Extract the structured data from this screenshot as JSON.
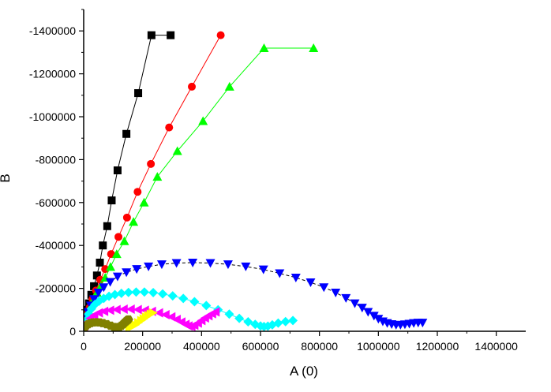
{
  "chart_data": {
    "type": "scatter",
    "xlabel": "A (0)",
    "ylabel": "B",
    "xlim": [
      0,
      1500000
    ],
    "ylim": [
      0,
      -1500000
    ],
    "x_ticks": [
      0,
      200000,
      400000,
      600000,
      800000,
      1000000,
      1200000,
      1400000
    ],
    "x_tick_labels": [
      "0",
      "200000",
      "400000",
      "600000",
      "800000",
      "1000000",
      "1200000",
      "1400000"
    ],
    "y_ticks": [
      0,
      -200000,
      -400000,
      -600000,
      -800000,
      -1000000,
      -1200000,
      -1400000
    ],
    "y_tick_labels": [
      "0",
      "-200000",
      "-400000",
      "-600000",
      "-800000",
      "-1000000",
      "-1200000",
      "-1400000"
    ],
    "grid": false,
    "series": [
      {
        "color": "#000000",
        "marker": "square",
        "line": "solid",
        "x": [
          5000,
          10000,
          18000,
          26000,
          35000,
          45000,
          55000,
          65000,
          80000,
          95000,
          115000,
          145000,
          185000,
          230000,
          295000
        ],
        "y": [
          -60000,
          -100000,
          -130000,
          -170000,
          -210000,
          -260000,
          -320000,
          -400000,
          -490000,
          -610000,
          -750000,
          -920000,
          -1110000,
          -1380000,
          -1380000
        ]
      },
      {
        "color": "#ff0000",
        "marker": "circle",
        "line": "solid",
        "x": [
          5000,
          12000,
          20000,
          30000,
          42000,
          56000,
          73000,
          93000,
          118000,
          147000,
          183000,
          228000,
          290000,
          367000,
          465000
        ],
        "y": [
          -50000,
          -80000,
          -110000,
          -150000,
          -190000,
          -240000,
          -290000,
          -360000,
          -440000,
          -530000,
          -650000,
          -780000,
          -950000,
          -1140000,
          -1380000
        ]
      },
      {
        "color": "#00ff00",
        "marker": "triangle-up",
        "line": "solid",
        "x": [
          5000,
          10000,
          17000,
          25000,
          34000,
          45000,
          58000,
          73000,
          91000,
          112000,
          138000,
          169000,
          205000,
          250000,
          318000,
          405000,
          495000,
          612000,
          780000
        ],
        "y": [
          -45000,
          -70000,
          -95000,
          -120000,
          -150000,
          -180000,
          -210000,
          -250000,
          -300000,
          -360000,
          -420000,
          -510000,
          -600000,
          -720000,
          -840000,
          -980000,
          -1140000,
          -1320000,
          -1320000
        ]
      },
      {
        "color": "#0000ff",
        "marker": "triangle-down",
        "line": "dash",
        "x": [
          3000,
          8000,
          15000,
          24000,
          35000,
          50000,
          68000,
          90000,
          115000,
          145000,
          180000,
          220000,
          265000,
          315000,
          370000,
          430000,
          490000,
          550000,
          610000,
          665000,
          720000,
          770000,
          815000,
          855000,
          890000,
          920000,
          945000,
          965000,
          985000,
          1000000,
          1015000,
          1030000,
          1045000,
          1060000,
          1075000,
          1090000,
          1105000,
          1120000,
          1135000,
          1150000
        ],
        "y": [
          -30000,
          -60000,
          -90000,
          -120000,
          -150000,
          -180000,
          -205000,
          -230000,
          -255000,
          -275000,
          -290000,
          -302000,
          -312000,
          -318000,
          -320000,
          -318000,
          -312000,
          -302000,
          -288000,
          -270000,
          -250000,
          -228000,
          -205000,
          -180000,
          -155000,
          -130000,
          -110000,
          -90000,
          -72000,
          -58000,
          -46000,
          -38000,
          -33000,
          -30000,
          -30000,
          -32000,
          -35000,
          -38000,
          -40000,
          -40000
        ]
      },
      {
        "color": "#00ffff",
        "marker": "diamond",
        "line": "solid",
        "x": [
          2000,
          8000,
          16000,
          26000,
          38000,
          52000,
          68000,
          86000,
          106000,
          128000,
          152000,
          178000,
          206000,
          236000,
          268000,
          302000,
          338000,
          376000,
          416000,
          456000,
          494000,
          528000,
          558000,
          582000,
          600000,
          612000,
          625000,
          640000,
          660000,
          685000,
          710000
        ],
        "y": [
          -20000,
          -50000,
          -80000,
          -105000,
          -125000,
          -140000,
          -153000,
          -163000,
          -171000,
          -177000,
          -181000,
          -183000,
          -183000,
          -180000,
          -174000,
          -165000,
          -153000,
          -138000,
          -120000,
          -100000,
          -80000,
          -60000,
          -44000,
          -32000,
          -25000,
          -22000,
          -24000,
          -30000,
          -38000,
          -45000,
          -50000
        ]
      },
      {
        "color": "#ff00ff",
        "marker": "triangle-left",
        "line": "solid",
        "x": [
          2000,
          10000,
          22000,
          36000,
          52000,
          70000,
          90000,
          112000,
          136000,
          160000,
          184000,
          208000,
          232000,
          256000,
          278000,
          298000,
          316000,
          332000,
          346000,
          356000,
          366000,
          376000,
          388000,
          400000,
          412000,
          424000,
          436000,
          448000
        ],
        "y": [
          -20000,
          -40000,
          -60000,
          -75000,
          -86000,
          -93000,
          -98000,
          -101000,
          -103000,
          -103000,
          -101000,
          -98000,
          -93000,
          -86000,
          -77000,
          -67000,
          -55000,
          -43000,
          -32000,
          -25000,
          -22000,
          -28000,
          -38000,
          -50000,
          -62000,
          -72000,
          -82000,
          -90000
        ]
      },
      {
        "color": "#ffff00",
        "marker": "triangle-right",
        "line": "solid",
        "x": [
          155000,
          165000,
          175000,
          185000,
          195000,
          203000,
          211000,
          219000,
          227000,
          235000
        ],
        "y": [
          -20000,
          -22000,
          -30000,
          -40000,
          -50000,
          -58000,
          -66000,
          -74000,
          -80000,
          -86000
        ]
      },
      {
        "color": "#808000",
        "marker": "hexagon",
        "line": "solid",
        "x": [
          2000,
          8000,
          15000,
          23000,
          32000,
          42000,
          53000,
          65000,
          78000,
          91000,
          103000,
          113000,
          121000,
          128000,
          134000,
          139000,
          144000,
          148000,
          152000
        ],
        "y": [
          -15000,
          -25000,
          -33000,
          -38000,
          -41000,
          -42000,
          -41000,
          -38000,
          -33000,
          -26000,
          -20000,
          -18000,
          -20000,
          -26000,
          -33000,
          -40000,
          -46000,
          -51000,
          -55000
        ]
      }
    ]
  }
}
